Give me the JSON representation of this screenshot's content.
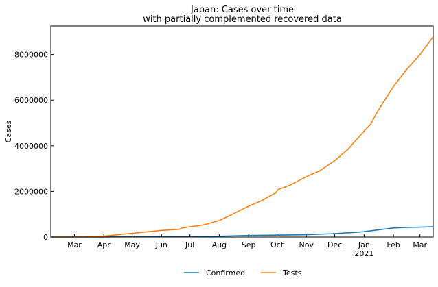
{
  "chart_data": {
    "type": "line",
    "title": "Japan: Cases over time",
    "subtitle": "with partially complemented recovered data",
    "xlabel": "",
    "ylabel": "Cases",
    "xlim": [
      "2020-02-05",
      "2021-03-15"
    ],
    "ylim": [
      0,
      9250000
    ],
    "y_ticks": [
      0,
      2000000,
      4000000,
      6000000,
      8000000
    ],
    "x_ticks": [
      {
        "date": "2020-03-01",
        "label": "Mar"
      },
      {
        "date": "2020-04-01",
        "label": "Apr"
      },
      {
        "date": "2020-05-01",
        "label": "May"
      },
      {
        "date": "2020-06-01",
        "label": "Jun"
      },
      {
        "date": "2020-07-01",
        "label": "Jul"
      },
      {
        "date": "2020-08-01",
        "label": "Aug"
      },
      {
        "date": "2020-09-01",
        "label": "Sep"
      },
      {
        "date": "2020-10-01",
        "label": "Oct"
      },
      {
        "date": "2020-11-01",
        "label": "Nov"
      },
      {
        "date": "2020-12-01",
        "label": "Dec"
      },
      {
        "date": "2021-01-01",
        "label": "Jan",
        "sublabel": "2021"
      },
      {
        "date": "2021-02-01",
        "label": "Feb"
      },
      {
        "date": "2021-03-01",
        "label": "Mar"
      }
    ],
    "grid": false,
    "legend_position": "bottom-center",
    "series": [
      {
        "name": "Confirmed",
        "color": "#1f77b4",
        "points": [
          [
            "2020-02-05",
            0
          ],
          [
            "2020-03-01",
            300
          ],
          [
            "2020-04-01",
            2500
          ],
          [
            "2020-05-01",
            14500
          ],
          [
            "2020-06-01",
            17000
          ],
          [
            "2020-07-01",
            19000
          ],
          [
            "2020-08-01",
            36000
          ],
          [
            "2020-09-01",
            68000
          ],
          [
            "2020-10-01",
            83000
          ],
          [
            "2020-11-01",
            102000
          ],
          [
            "2020-12-01",
            150000
          ],
          [
            "2020-12-25",
            210000
          ],
          [
            "2021-01-01",
            235000
          ],
          [
            "2021-01-15",
            310000
          ],
          [
            "2021-02-01",
            395000
          ],
          [
            "2021-02-15",
            420000
          ],
          [
            "2021-03-01",
            432000
          ],
          [
            "2021-03-15",
            448000
          ]
        ]
      },
      {
        "name": "Tests",
        "color": "#ff7f0e",
        "points": [
          [
            "2020-02-05",
            0
          ],
          [
            "2020-03-01",
            5000
          ],
          [
            "2020-04-01",
            40000
          ],
          [
            "2020-05-01",
            165000
          ],
          [
            "2020-06-01",
            290000
          ],
          [
            "2020-06-20",
            340000
          ],
          [
            "2020-06-23",
            400000
          ],
          [
            "2020-07-01",
            450000
          ],
          [
            "2020-07-15",
            530000
          ],
          [
            "2020-08-01",
            720000
          ],
          [
            "2020-08-15",
            1000000
          ],
          [
            "2020-09-01",
            1350000
          ],
          [
            "2020-09-15",
            1600000
          ],
          [
            "2020-09-30",
            1950000
          ],
          [
            "2020-10-02",
            2080000
          ],
          [
            "2020-10-15",
            2280000
          ],
          [
            "2020-11-01",
            2650000
          ],
          [
            "2020-11-15",
            2900000
          ],
          [
            "2020-12-01",
            3350000
          ],
          [
            "2020-12-15",
            3850000
          ],
          [
            "2021-01-01",
            4650000
          ],
          [
            "2021-01-08",
            4950000
          ],
          [
            "2021-01-15",
            5500000
          ],
          [
            "2021-02-01",
            6600000
          ],
          [
            "2021-02-15",
            7350000
          ],
          [
            "2021-03-01",
            8000000
          ],
          [
            "2021-03-15",
            8780000
          ]
        ]
      }
    ]
  }
}
